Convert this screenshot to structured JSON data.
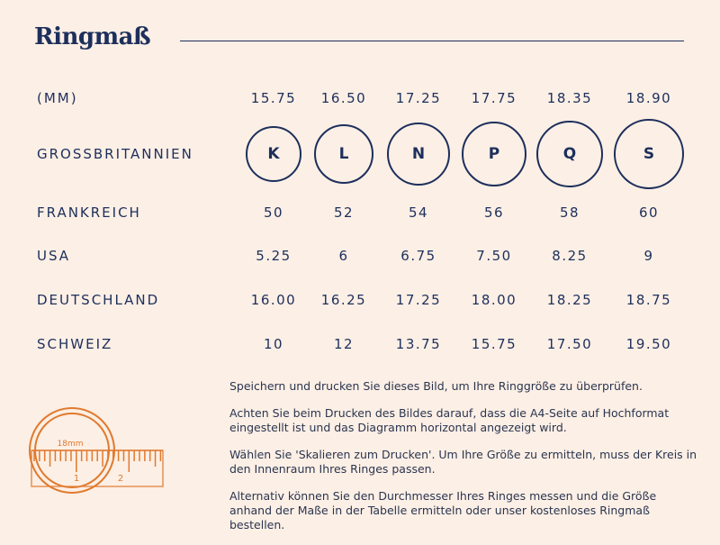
{
  "title": "Ringmaß",
  "columns_x_note": null,
  "rows": [
    {
      "label": "(MM)",
      "values": [
        "15.75",
        "16.50",
        "17.25",
        "17.75",
        "18.35",
        "18.90"
      ]
    },
    {
      "label": "GROSSBRITANNIEN",
      "values": [
        "K",
        "L",
        "N",
        "P",
        "Q",
        "S"
      ]
    },
    {
      "label": "FRANKREICH",
      "values": [
        "50",
        "52",
        "54",
        "56",
        "58",
        "60"
      ]
    },
    {
      "label": "USA",
      "values": [
        "5.25",
        "6",
        "6.75",
        "7.50",
        "8.25",
        "9"
      ]
    },
    {
      "label": "DEUTSCHLAND",
      "values": [
        "16.00",
        "16.25",
        "17.25",
        "18.00",
        "18.25",
        "18.75"
      ]
    },
    {
      "label": "SCHWEIZ",
      "values": [
        "10",
        "12",
        "13.75",
        "15.75",
        "17.50",
        "19.50"
      ]
    }
  ],
  "ruler": {
    "label": "18mm",
    "tick_1": "1",
    "tick_2": "2"
  },
  "info": [
    "Speichern und drucken Sie dieses Bild, um Ihre Ringgröße zu überprüfen.",
    "Achten Sie beim Drucken des Bildes darauf, dass die A4-Seite auf Hochformat eingestellt ist und das Diagramm horizontal angezeigt wird.",
    "Wählen Sie 'Skalieren zum Drucken'. Um Ihre Größe zu ermitteln, muss der Kreis in den Innenraum Ihres Ringes passen.",
    "Alternativ können Sie den Durchmesser Ihres Ringes messen und die Größe anhand der Maße in der Tabelle ermitteln oder unser kostenloses Ringmaß bestellen."
  ],
  "colors": {
    "background": "#fcefe5",
    "navy": "#1d2f5c",
    "orange": "#e07a2e"
  }
}
